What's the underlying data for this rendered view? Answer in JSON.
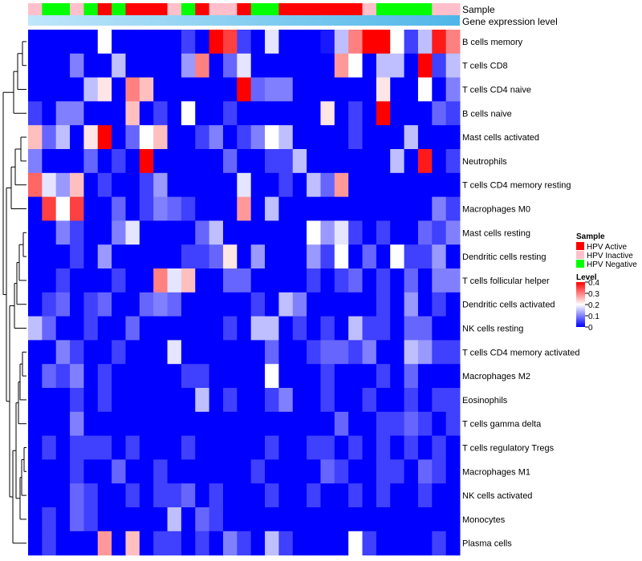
{
  "chart_data": {
    "type": "heatmap",
    "title": "",
    "annotation_tracks": [
      "Sample",
      "Gene expression level"
    ],
    "sample_groups": [
      "inactive",
      "negative",
      "negative",
      "inactive",
      "negative",
      "active",
      "negative",
      "active",
      "active",
      "active",
      "inactive",
      "negative",
      "active",
      "inactive",
      "inactive",
      "active",
      "negative",
      "negative",
      "active",
      "active",
      "active",
      "active",
      "active",
      "active",
      "inactive",
      "negative",
      "negative",
      "negative",
      "negative",
      "inactive",
      "inactive"
    ],
    "rows": [
      {
        "name": "B cells memory",
        "values": [
          0.0,
          0.0,
          0.0,
          0.0,
          0.0,
          0.2,
          0.0,
          0.0,
          0.0,
          0.0,
          0.0,
          0.05,
          0.0,
          0.4,
          0.35,
          0.05,
          0.0,
          0.18,
          0.0,
          0.0,
          0.0,
          0.02,
          0.15,
          0.3,
          0.4,
          0.4,
          0.2,
          0.05,
          0.15,
          0.38,
          0.3
        ]
      },
      {
        "name": "T cells CD8",
        "values": [
          0.0,
          0.0,
          0.0,
          0.1,
          0.0,
          0.0,
          0.15,
          0.0,
          0.0,
          0.0,
          0.0,
          0.12,
          0.3,
          0.0,
          0.08,
          0.18,
          0.0,
          0.0,
          0.0,
          0.0,
          0.0,
          0.0,
          0.28,
          0.2,
          0.0,
          0.15,
          0.15,
          0.0,
          0.4,
          0.05,
          0.15
        ]
      },
      {
        "name": "T cells CD4 naive",
        "values": [
          0.0,
          0.0,
          0.0,
          0.0,
          0.15,
          0.22,
          0.0,
          0.3,
          0.25,
          0.0,
          0.0,
          0.0,
          0.0,
          0.0,
          0.0,
          0.4,
          0.08,
          0.1,
          0.1,
          0.0,
          0.0,
          0.0,
          0.0,
          0.0,
          0.0,
          0.22,
          0.0,
          0.0,
          0.2,
          0.0,
          0.1
        ]
      },
      {
        "name": "B cells naive",
        "values": [
          0.05,
          0.0,
          0.1,
          0.1,
          0.0,
          0.0,
          0.0,
          0.25,
          0.0,
          0.05,
          0.0,
          0.2,
          0.0,
          0.0,
          0.05,
          0.0,
          0.0,
          0.0,
          0.0,
          0.0,
          0.0,
          0.22,
          0.0,
          0.05,
          0.0,
          0.4,
          0.0,
          0.0,
          0.0,
          0.08,
          0.05
        ]
      },
      {
        "name": "Mast cells activated",
        "values": [
          0.25,
          0.08,
          0.15,
          0.0,
          0.22,
          0.4,
          0.0,
          0.08,
          0.2,
          0.25,
          0.0,
          0.0,
          0.05,
          0.1,
          0.0,
          0.05,
          0.1,
          0.2,
          0.15,
          0.0,
          0.0,
          0.0,
          0.0,
          0.05,
          0.0,
          0.0,
          0.0,
          0.15,
          0.0,
          0.0,
          0.0
        ]
      },
      {
        "name": "Neutrophils",
        "values": [
          0.1,
          0.0,
          0.0,
          0.0,
          0.08,
          0.0,
          0.05,
          0.0,
          0.4,
          0.0,
          0.0,
          0.0,
          0.0,
          0.0,
          0.08,
          0.0,
          0.0,
          0.05,
          0.05,
          0.15,
          0.0,
          0.0,
          0.0,
          0.0,
          0.0,
          0.0,
          0.15,
          0.0,
          0.38,
          0.0,
          0.05
        ]
      },
      {
        "name": "T cells CD4 memory resting",
        "values": [
          0.32,
          0.18,
          0.12,
          0.25,
          0.0,
          0.05,
          0.0,
          0.0,
          0.05,
          0.12,
          0.0,
          0.0,
          0.0,
          0.0,
          0.0,
          0.18,
          0.0,
          0.0,
          0.05,
          0.0,
          0.15,
          0.08,
          0.28,
          0.0,
          0.0,
          0.0,
          0.0,
          0.0,
          0.0,
          0.0,
          0.0
        ]
      },
      {
        "name": "Macrophages M0",
        "values": [
          0.0,
          0.35,
          0.2,
          0.35,
          0.0,
          0.0,
          0.08,
          0.0,
          0.05,
          0.1,
          0.08,
          0.05,
          0.0,
          0.0,
          0.0,
          0.28,
          0.0,
          0.15,
          0.0,
          0.0,
          0.0,
          0.0,
          0.0,
          0.0,
          0.0,
          0.0,
          0.0,
          0.0,
          0.0,
          0.1,
          0.05
        ]
      },
      {
        "name": "Mast cells resting",
        "values": [
          0.0,
          0.0,
          0.1,
          0.05,
          0.0,
          0.0,
          0.1,
          0.18,
          0.0,
          0.0,
          0.0,
          0.0,
          0.08,
          0.15,
          0.0,
          0.0,
          0.0,
          0.0,
          0.0,
          0.0,
          0.2,
          0.12,
          0.18,
          0.05,
          0.0,
          0.05,
          0.0,
          0.0,
          0.08,
          0.05,
          0.1
        ]
      },
      {
        "name": "Dendritic cells resting",
        "values": [
          0.0,
          0.0,
          0.0,
          0.05,
          0.0,
          0.12,
          0.0,
          0.0,
          0.0,
          0.0,
          0.0,
          0.05,
          0.05,
          0.08,
          0.22,
          0.0,
          0.12,
          0.0,
          0.0,
          0.0,
          0.12,
          0.05,
          0.2,
          0.0,
          0.08,
          0.0,
          0.2,
          0.05,
          0.05,
          0.12,
          0.0
        ]
      },
      {
        "name": "T cells follicular helper",
        "values": [
          0.0,
          0.0,
          0.05,
          0.0,
          0.0,
          0.0,
          0.05,
          0.0,
          0.0,
          0.3,
          0.18,
          0.25,
          0.0,
          0.0,
          0.08,
          0.08,
          0.0,
          0.0,
          0.0,
          0.0,
          0.05,
          0.0,
          0.05,
          0.08,
          0.0,
          0.05,
          0.0,
          0.08,
          0.0,
          0.1,
          0.1
        ]
      },
      {
        "name": "Dendritic cells activated",
        "values": [
          0.0,
          0.05,
          0.08,
          0.0,
          0.05,
          0.08,
          0.0,
          0.0,
          0.08,
          0.1,
          0.08,
          0.0,
          0.0,
          0.0,
          0.0,
          0.0,
          0.05,
          0.0,
          0.15,
          0.1,
          0.0,
          0.0,
          0.0,
          0.0,
          0.0,
          0.05,
          0.0,
          0.12,
          0.0,
          0.05,
          0.0
        ]
      },
      {
        "name": "NK cells resting",
        "values": [
          0.15,
          0.08,
          0.0,
          0.0,
          0.05,
          0.0,
          0.0,
          0.08,
          0.0,
          0.0,
          0.0,
          0.0,
          0.0,
          0.0,
          0.05,
          0.0,
          0.15,
          0.15,
          0.0,
          0.05,
          0.0,
          0.05,
          0.0,
          0.15,
          0.05,
          0.05,
          0.0,
          0.08,
          0.08,
          0.0,
          0.0
        ]
      },
      {
        "name": "T cells CD4 memory activated",
        "values": [
          0.0,
          0.0,
          0.1,
          0.05,
          0.0,
          0.0,
          0.05,
          0.0,
          0.0,
          0.0,
          0.18,
          0.0,
          0.0,
          0.0,
          0.0,
          0.0,
          0.0,
          0.08,
          0.0,
          0.0,
          0.05,
          0.08,
          0.08,
          0.05,
          0.1,
          0.0,
          0.0,
          0.15,
          0.12,
          0.05,
          0.05
        ]
      },
      {
        "name": "Macrophages M2",
        "values": [
          0.0,
          0.08,
          0.05,
          0.1,
          0.0,
          0.05,
          0.0,
          0.0,
          0.0,
          0.0,
          0.0,
          0.05,
          0.05,
          0.0,
          0.0,
          0.0,
          0.0,
          0.2,
          0.0,
          0.0,
          0.0,
          0.05,
          0.0,
          0.0,
          0.0,
          0.05,
          0.0,
          0.08,
          0.0,
          0.0,
          0.0
        ]
      },
      {
        "name": "Eosinophils",
        "values": [
          0.0,
          0.0,
          0.0,
          0.05,
          0.0,
          0.05,
          0.0,
          0.0,
          0.0,
          0.0,
          0.0,
          0.0,
          0.15,
          0.0,
          0.05,
          0.0,
          0.0,
          0.05,
          0.1,
          0.0,
          0.0,
          0.05,
          0.0,
          0.0,
          0.05,
          0.0,
          0.0,
          0.05,
          0.0,
          0.05,
          0.05
        ]
      },
      {
        "name": "T cells gamma delta",
        "values": [
          0.0,
          0.0,
          0.0,
          0.1,
          0.0,
          0.0,
          0.0,
          0.0,
          0.0,
          0.0,
          0.0,
          0.0,
          0.0,
          0.0,
          0.0,
          0.0,
          0.0,
          0.0,
          0.0,
          0.0,
          0.0,
          0.0,
          0.08,
          0.0,
          0.0,
          0.05,
          0.05,
          0.08,
          0.05,
          0.0,
          0.05
        ]
      },
      {
        "name": "T cells regulatory  Tregs",
        "values": [
          0.0,
          0.05,
          0.0,
          0.05,
          0.05,
          0.05,
          0.0,
          0.05,
          0.0,
          0.0,
          0.0,
          0.05,
          0.0,
          0.0,
          0.0,
          0.0,
          0.0,
          0.05,
          0.0,
          0.0,
          0.05,
          0.05,
          0.0,
          0.05,
          0.0,
          0.05,
          0.0,
          0.05,
          0.0,
          0.05,
          0.0
        ]
      },
      {
        "name": "Macrophages M1",
        "values": [
          0.0,
          0.0,
          0.0,
          0.05,
          0.0,
          0.0,
          0.08,
          0.0,
          0.0,
          0.05,
          0.0,
          0.0,
          0.0,
          0.0,
          0.0,
          0.0,
          0.05,
          0.0,
          0.0,
          0.0,
          0.0,
          0.08,
          0.05,
          0.0,
          0.0,
          0.05,
          0.05,
          0.0,
          0.08,
          0.05,
          0.0
        ]
      },
      {
        "name": "NK cells activated",
        "values": [
          0.0,
          0.0,
          0.0,
          0.08,
          0.05,
          0.0,
          0.0,
          0.05,
          0.0,
          0.05,
          0.05,
          0.08,
          0.0,
          0.05,
          0.0,
          0.0,
          0.0,
          0.05,
          0.0,
          0.0,
          0.05,
          0.0,
          0.0,
          0.05,
          0.0,
          0.05,
          0.0,
          0.0,
          0.05,
          0.0,
          0.0
        ]
      },
      {
        "name": "Monocytes",
        "values": [
          0.0,
          0.05,
          0.0,
          0.08,
          0.05,
          0.0,
          0.0,
          0.0,
          0.0,
          0.0,
          0.15,
          0.0,
          0.08,
          0.05,
          0.0,
          0.0,
          0.0,
          0.0,
          0.0,
          0.0,
          0.0,
          0.0,
          0.0,
          0.0,
          0.0,
          0.0,
          0.0,
          0.0,
          0.0,
          0.0,
          0.0
        ]
      },
      {
        "name": "Plasma cells",
        "values": [
          0.0,
          0.05,
          0.0,
          0.0,
          0.0,
          0.28,
          0.0,
          0.25,
          0.0,
          0.05,
          0.05,
          0.0,
          0.05,
          0.0,
          0.1,
          0.05,
          0.0,
          0.15,
          0.05,
          0.0,
          0.0,
          0.0,
          0.0,
          0.2,
          0.05,
          0.0,
          0.0,
          0.0,
          0.0,
          0.05,
          0.0
        ]
      }
    ],
    "legend": {
      "sample_title": "Sample",
      "sample_entries": [
        {
          "key": "active",
          "label": "HPV Active",
          "color": "#ff0000"
        },
        {
          "key": "inactive",
          "label": "HPV Inactive",
          "color": "#ffc0cb"
        },
        {
          "key": "negative",
          "label": "HPV Negative",
          "color": "#00ff00"
        }
      ],
      "level_title": "Level",
      "level_ticks": [
        "0.4",
        "0.3",
        "0.2",
        "0.1",
        "0"
      ],
      "level_tick_values": [
        0.4,
        0.3,
        0.2,
        0.1,
        0.0
      ],
      "level_range": [
        0,
        0.4
      ]
    },
    "colors": {
      "low": "#0000ff",
      "mid": "#ffffff",
      "high": "#ff0000",
      "gene_expression_light": "#bfe6fa",
      "gene_expression_dark": "#4fb6e8"
    },
    "value_range": [
      0,
      0.4
    ]
  }
}
